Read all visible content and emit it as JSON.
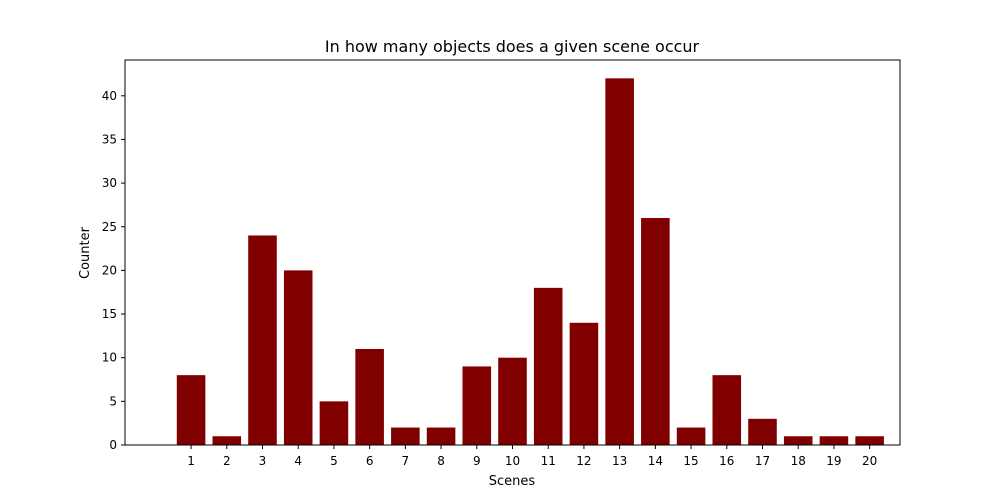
{
  "chart_data": {
    "type": "bar",
    "title": "In how many objects does a given scene occur",
    "xlabel": "Scenes",
    "ylabel": "Counter",
    "categories": [
      "1",
      "2",
      "3",
      "4",
      "5",
      "6",
      "7",
      "8",
      "9",
      "10",
      "11",
      "12",
      "13",
      "14",
      "15",
      "16",
      "17",
      "18",
      "19",
      "20"
    ],
    "values": [
      8,
      1,
      24,
      20,
      5,
      11,
      2,
      2,
      9,
      10,
      18,
      14,
      42,
      26,
      2,
      8,
      3,
      1,
      1,
      1
    ],
    "ylim": [
      0,
      44.1
    ],
    "yticks": [
      0,
      5,
      10,
      15,
      20,
      25,
      30,
      35,
      40
    ],
    "bar_color": "#800000",
    "grid": false,
    "legend": "none"
  }
}
